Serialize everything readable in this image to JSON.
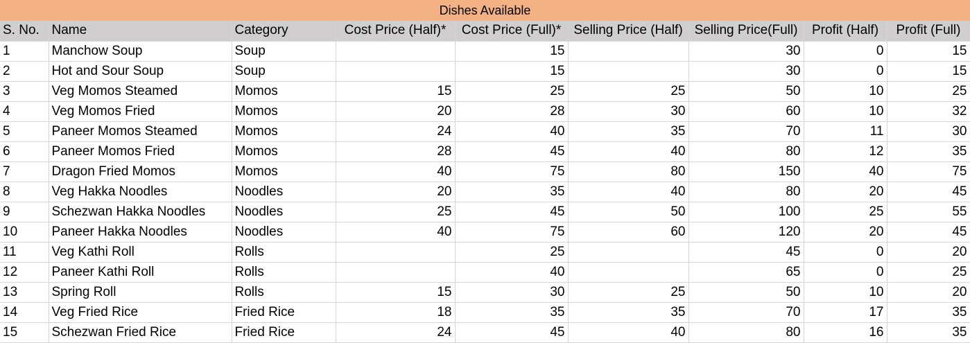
{
  "sheet": {
    "title": "Dishes Available",
    "header_color": "#f4b183",
    "columns": [
      "S. No.",
      "Name",
      "Category",
      "Cost Price (Half)*",
      "Cost Price (Full)*",
      "Selling Price (Half)",
      "Selling Price(Full)",
      "Profit (Half)",
      "Profit (Full)"
    ],
    "rows": [
      [
        "1",
        "Manchow Soup",
        "Soup",
        "",
        "15",
        "",
        "30",
        "0",
        "15"
      ],
      [
        "2",
        "Hot and Sour Soup",
        "Soup",
        "",
        "15",
        "",
        "30",
        "0",
        "15"
      ],
      [
        "3",
        "Veg Momos Steamed",
        "Momos",
        "15",
        "25",
        "25",
        "50",
        "10",
        "25"
      ],
      [
        "4",
        "Veg Momos Fried",
        "Momos",
        "20",
        "28",
        "30",
        "60",
        "10",
        "32"
      ],
      [
        "5",
        "Paneer Momos Steamed",
        "Momos",
        "24",
        "40",
        "35",
        "70",
        "11",
        "30"
      ],
      [
        "6",
        "Paneer Momos Fried",
        "Momos",
        "28",
        "45",
        "40",
        "80",
        "12",
        "35"
      ],
      [
        "7",
        "Dragon Fried Momos",
        "Momos",
        "40",
        "75",
        "80",
        "150",
        "40",
        "75"
      ],
      [
        "8",
        "Veg Hakka Noodles",
        "Noodles",
        "20",
        "35",
        "40",
        "80",
        "20",
        "45"
      ],
      [
        "9",
        "Schezwan Hakka Noodles",
        "Noodles",
        "25",
        "45",
        "50",
        "100",
        "25",
        "55"
      ],
      [
        "10",
        "Paneer Hakka Noodles",
        "Noodles",
        "40",
        "75",
        "60",
        "120",
        "20",
        "45"
      ],
      [
        "11",
        "Veg Kathi Roll",
        "Rolls",
        "",
        "25",
        "",
        "45",
        "0",
        "20"
      ],
      [
        "12",
        "Paneer Kathi Roll",
        "Rolls",
        "",
        "40",
        "",
        "65",
        "0",
        "25"
      ],
      [
        "13",
        "Spring Roll",
        "Rolls",
        "15",
        "30",
        "25",
        "50",
        "10",
        "20"
      ],
      [
        "14",
        "Veg Fried Rice",
        "Fried Rice",
        "18",
        "35",
        "35",
        "70",
        "17",
        "35"
      ],
      [
        "15",
        "Schezwan Fried Rice",
        "Fried Rice",
        "24",
        "45",
        "40",
        "80",
        "16",
        "35"
      ]
    ]
  }
}
